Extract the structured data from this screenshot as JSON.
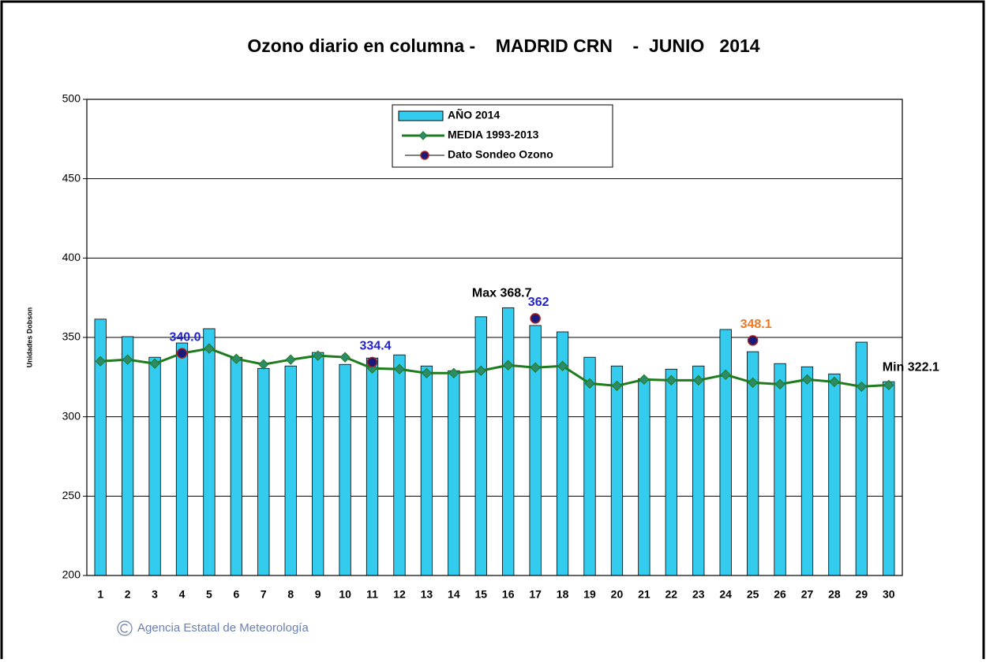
{
  "chart_data": {
    "type": "bar-line",
    "title": "Ozono diario en columna -    MADRID CRN    -  JUNIO   2014",
    "y_label": "Unidades Dobson",
    "categories": [
      "1",
      "2",
      "3",
      "4",
      "5",
      "6",
      "7",
      "8",
      "9",
      "10",
      "11",
      "12",
      "13",
      "14",
      "15",
      "16",
      "17",
      "18",
      "19",
      "20",
      "21",
      "22",
      "23",
      "24",
      "25",
      "26",
      "27",
      "28",
      "29",
      "30"
    ],
    "series": [
      {
        "name": "AÑO 2014",
        "type": "bar",
        "color": "#33ccee",
        "values": [
          361.5,
          350.5,
          337.5,
          346.5,
          355.5,
          337.5,
          330.5,
          332,
          340.5,
          333,
          337,
          339,
          332,
          329,
          363,
          368.7,
          357.5,
          353.5,
          337.5,
          332,
          324,
          330,
          332,
          355,
          341,
          333.5,
          331.5,
          327,
          347,
          322.1
        ]
      },
      {
        "name": "MEDIA 1993-2013",
        "type": "line",
        "color": "#1e7b1e",
        "marker_color": "#2e8b6a",
        "values": [
          335,
          336,
          333.5,
          340,
          343,
          336.5,
          333,
          336,
          338.5,
          337.5,
          330.5,
          330,
          327.5,
          327.5,
          329,
          332.5,
          331,
          332,
          321,
          319.5,
          323.5,
          323,
          323,
          326.5,
          321.5,
          320.5,
          323.5,
          322,
          319,
          320
        ]
      },
      {
        "name": "Dato Sondeo Ozono",
        "type": "point",
        "color": "#1a1a7a",
        "edge_color": "#aa2020",
        "values": [
          null,
          null,
          null,
          340.0,
          null,
          null,
          null,
          null,
          null,
          null,
          334.4,
          null,
          null,
          null,
          null,
          null,
          362,
          null,
          null,
          null,
          null,
          null,
          null,
          null,
          348.1,
          null,
          null,
          null,
          null,
          null
        ],
        "value_labels": [
          null,
          null,
          null,
          "340.0",
          null,
          null,
          null,
          null,
          null,
          null,
          "334.4",
          null,
          null,
          null,
          null,
          null,
          "362",
          null,
          null,
          null,
          null,
          null,
          null,
          null,
          "348.1",
          null,
          null,
          null,
          null,
          null
        ],
        "label_colors": [
          null,
          null,
          null,
          "#2222cc",
          null,
          null,
          null,
          null,
          null,
          null,
          "#2222cc",
          null,
          null,
          null,
          null,
          null,
          "#2222cc",
          null,
          null,
          null,
          null,
          null,
          null,
          null,
          "#ee7722",
          null,
          null,
          null,
          null,
          null
        ]
      }
    ],
    "annotations": [
      {
        "text": "Max 368.7",
        "category": "16"
      },
      {
        "text": "Min 322.1",
        "category": "30"
      }
    ],
    "ylim": [
      200,
      500
    ],
    "yticks": [
      200,
      250,
      300,
      350,
      400,
      450,
      500
    ],
    "grid": true,
    "legend": "top-center",
    "footer": "Agencia Estatal de Meteorología"
  }
}
